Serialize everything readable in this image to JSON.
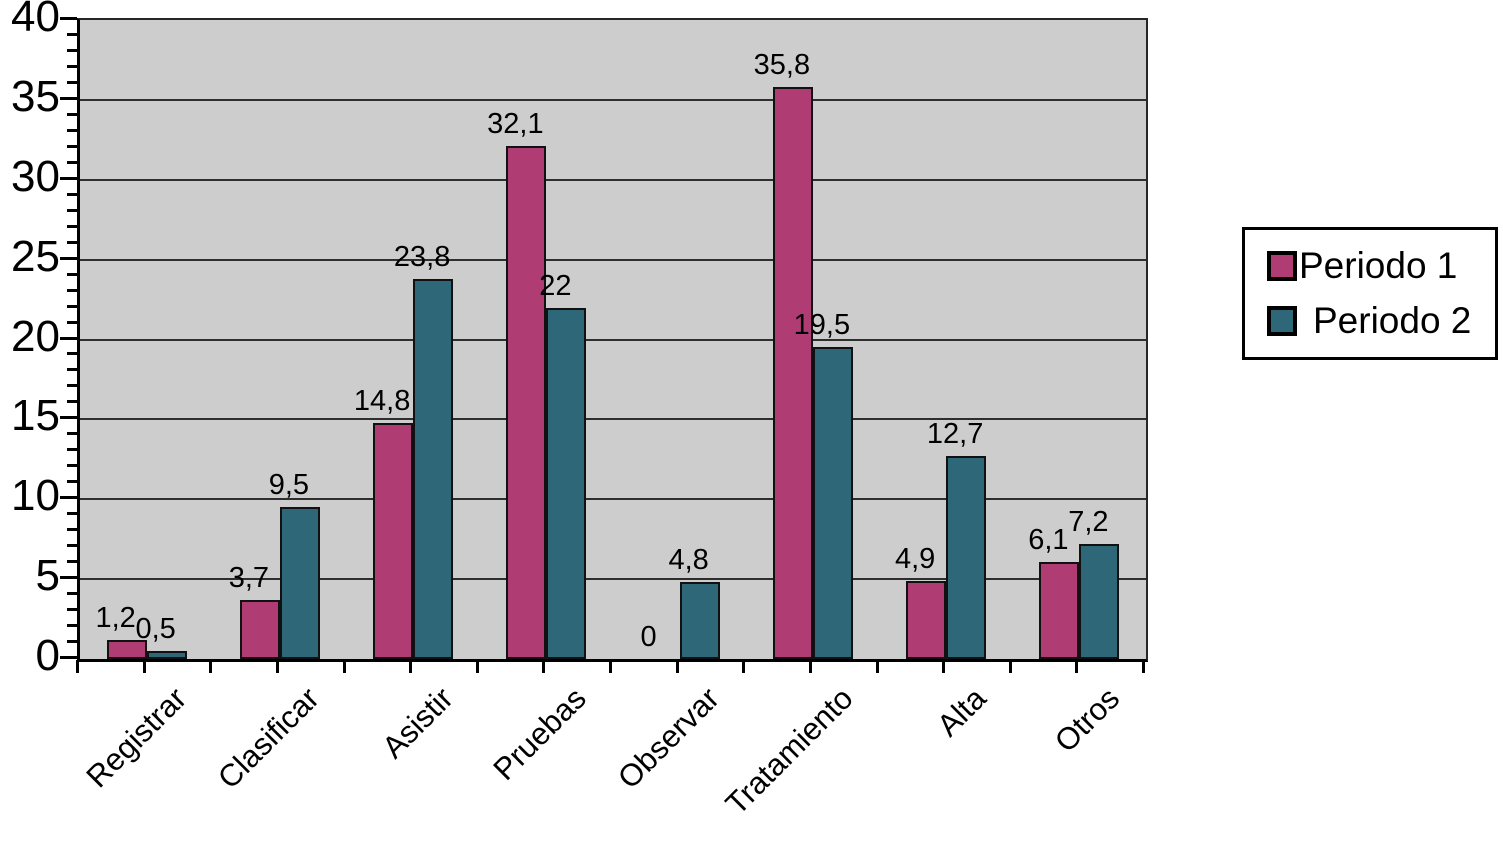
{
  "chart_data": {
    "type": "bar",
    "title": "",
    "categories": [
      "Registrar",
      "Clasificar",
      "Asistir",
      "Pruebas",
      "Observar",
      "Tratamiento",
      "Alta",
      "Otros"
    ],
    "series": [
      {
        "name": "Periodo 1",
        "color": "#b03c74",
        "values": [
          1.2,
          3.7,
          14.8,
          32.1,
          0,
          35.8,
          4.9,
          6.1
        ],
        "labels": [
          "1,2",
          "3,7",
          "14,8",
          "32,1",
          "0",
          "35,8",
          "4,9",
          "6,1"
        ]
      },
      {
        "name": "Periodo 2",
        "color": "#2e6777",
        "values": [
          0.5,
          9.5,
          23.8,
          22,
          4.8,
          19.5,
          12.7,
          7.2
        ],
        "labels": [
          "0,5",
          "9,5",
          "23,8",
          "22",
          "4,8",
          "19,5",
          "12,7",
          "7,2"
        ]
      }
    ],
    "ylim": [
      0,
      40
    ],
    "y_major_step": 5,
    "y_minor_step": 1,
    "y_tick_labels": [
      "0",
      "5",
      "10",
      "15",
      "20",
      "25",
      "30",
      "35",
      "40"
    ],
    "xlabel": "",
    "ylabel": "",
    "grid": "horizontal-major",
    "plot_background": "#cdcdcd",
    "legend_position": "right"
  },
  "legend": {
    "items": [
      {
        "label": "Periodo 1",
        "color": "#b03c74"
      },
      {
        "label": "Periodo 2",
        "color": "#2e6777"
      }
    ]
  }
}
